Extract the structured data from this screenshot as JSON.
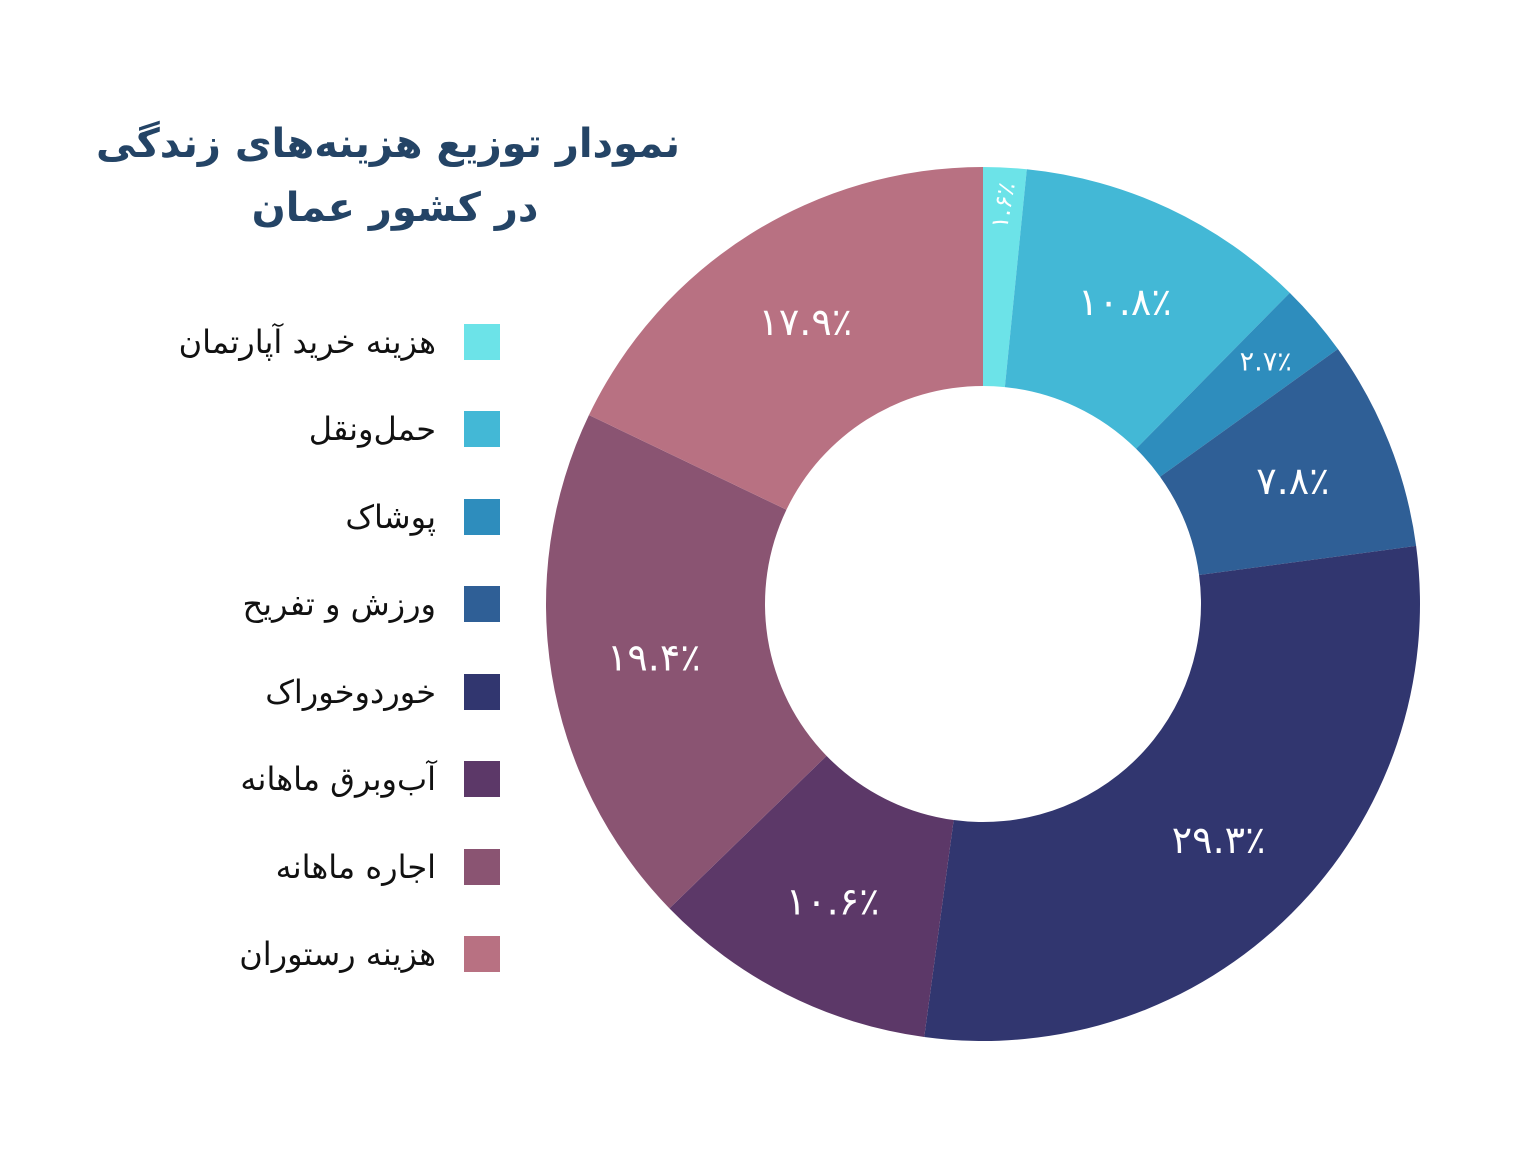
{
  "title_lines": [
    "نمودار توزیع هزینه‌های زندگی",
    "در کشور عمان"
  ],
  "chart_data": {
    "type": "pie",
    "donut": true,
    "categories": [
      "هزینه خرید آپارتمان",
      "حمل‌ونقل",
      "پوشاک",
      "ورزش و تفریح",
      "خوردوخوراک",
      "آب‌وبرق ماهانه",
      "اجاره ماهانه",
      "هزینه رستوران"
    ],
    "values": [
      1.6,
      10.8,
      2.7,
      7.8,
      29.3,
      10.6,
      19.4,
      17.9
    ],
    "value_labels": [
      "۱.۶٪",
      "۱۰.۸٪",
      "۲.۷٪",
      "۷.۸٪",
      "۲۹.۳٪",
      "۱۰.۶٪",
      "۱۹.۴٪",
      "۱۷.۹٪"
    ],
    "colors": [
      "#6ce3e8",
      "#43b8d6",
      "#2e8dbd",
      "#2f5f96",
      "#31366f",
      "#5c3868",
      "#8a5472",
      "#b87182"
    ],
    "legend_position": "left",
    "start": "top",
    "direction": "clockwise"
  }
}
